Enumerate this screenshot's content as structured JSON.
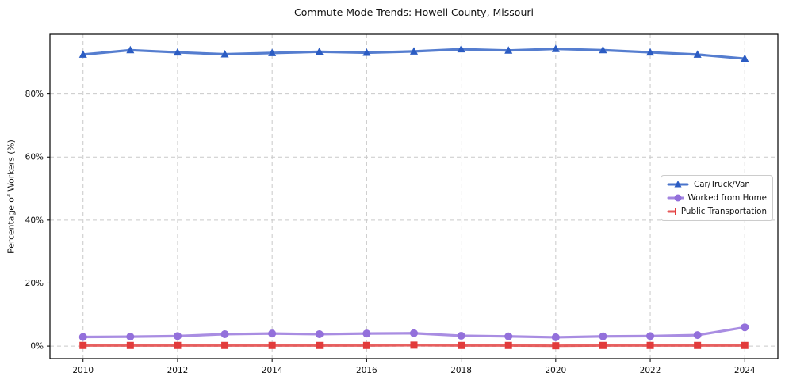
{
  "chart_data": {
    "type": "line",
    "title": "Commute Mode Trends: Howell County, Missouri",
    "xlabel": "",
    "ylabel": "Percentage of Workers (%)",
    "x": [
      2010,
      2011,
      2012,
      2013,
      2014,
      2015,
      2016,
      2017,
      2018,
      2019,
      2020,
      2021,
      2022,
      2023,
      2024
    ],
    "x_ticks": [
      2010,
      2012,
      2014,
      2016,
      2018,
      2020,
      2022,
      2024
    ],
    "x_tick_labels": [
      "2010",
      "2012",
      "2014",
      "2016",
      "2018",
      "2020",
      "2022",
      "2024"
    ],
    "y_ticks": [
      0,
      20,
      40,
      60,
      80
    ],
    "y_tick_labels": [
      "0%",
      "20%",
      "40%",
      "60%",
      "80%"
    ],
    "xlim": [
      2009.3,
      2024.7
    ],
    "ylim": [
      -4,
      99
    ],
    "grid": "dashed-both-axes",
    "grid_color": "#c9c9c9",
    "spine_color": "#000000",
    "legend_position": "center-right",
    "series": [
      {
        "name": "Car/Truck/Van",
        "color": "#2b5cc3",
        "marker": "triangle",
        "values": [
          92.5,
          93.9,
          93.2,
          92.6,
          93.0,
          93.4,
          93.1,
          93.5,
          94.2,
          93.8,
          94.3,
          93.9,
          93.2,
          92.5,
          91.2
        ]
      },
      {
        "name": "Worked from Home",
        "color": "#9370db",
        "marker": "circle",
        "values": [
          2.9,
          3.0,
          3.2,
          3.8,
          4.0,
          3.8,
          4.0,
          4.1,
          3.3,
          3.1,
          2.8,
          3.1,
          3.2,
          3.5,
          6.0
        ]
      },
      {
        "name": "Public Transportation",
        "color": "#e23b3b",
        "marker": "square",
        "values": [
          0.2,
          0.2,
          0.2,
          0.2,
          0.2,
          0.2,
          0.2,
          0.3,
          0.2,
          0.2,
          0.1,
          0.2,
          0.2,
          0.2,
          0.2
        ]
      }
    ]
  }
}
